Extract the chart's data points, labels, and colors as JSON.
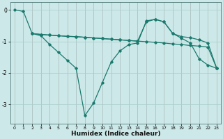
{
  "xlabel": "Humidex (Indice chaleur)",
  "background_color": "#cde8e8",
  "grid_color": "#a8cccc",
  "line_color": "#1a7a6e",
  "xlim": [
    -0.5,
    23.5
  ],
  "ylim": [
    -3.6,
    0.25
  ],
  "yticks": [
    0,
    -1,
    -2,
    -3
  ],
  "xticks": [
    0,
    1,
    2,
    3,
    4,
    5,
    6,
    7,
    8,
    9,
    10,
    11,
    12,
    13,
    14,
    15,
    16,
    17,
    18,
    19,
    20,
    21,
    22,
    23
  ],
  "line1_x": [
    0,
    1,
    2,
    3,
    4,
    5,
    6,
    7,
    8,
    9,
    10,
    11,
    12,
    13,
    14,
    15,
    16,
    17,
    18,
    19,
    20,
    21,
    22,
    23
  ],
  "line1_y": [
    0.0,
    -0.05,
    -0.75,
    -0.82,
    -1.1,
    -1.35,
    -1.6,
    -1.85,
    -3.35,
    -2.95,
    -2.3,
    -1.65,
    -1.3,
    -1.1,
    -1.05,
    -0.35,
    -0.3,
    -0.38,
    -0.75,
    -0.9,
    -1.05,
    -1.55,
    -1.75,
    -1.85
  ],
  "line2_x": [
    2,
    3,
    4,
    5,
    6,
    7,
    8,
    9,
    10,
    11,
    12,
    13,
    14,
    15,
    16,
    17,
    18,
    19,
    20,
    21,
    22,
    23
  ],
  "line2_y": [
    -0.75,
    -0.78,
    -0.8,
    -0.82,
    -0.84,
    -0.85,
    -0.87,
    -0.89,
    -0.91,
    -0.93,
    -0.95,
    -0.97,
    -0.99,
    -1.01,
    -1.03,
    -1.05,
    -1.08,
    -1.1,
    -1.13,
    -1.15,
    -1.18,
    -1.85
  ],
  "line3_x": [
    2,
    3,
    4,
    5,
    6,
    7,
    8,
    9,
    10,
    11,
    12,
    13,
    14,
    15,
    16,
    17,
    18,
    19,
    20,
    21,
    22,
    23
  ],
  "line3_y": [
    -0.75,
    -0.78,
    -0.8,
    -0.82,
    -0.84,
    -0.85,
    -0.87,
    -0.89,
    -0.91,
    -0.93,
    -0.95,
    -0.97,
    -0.99,
    -0.38,
    -0.3,
    -0.38,
    -0.75,
    -0.85,
    -0.88,
    -0.95,
    -1.05,
    -1.85
  ]
}
